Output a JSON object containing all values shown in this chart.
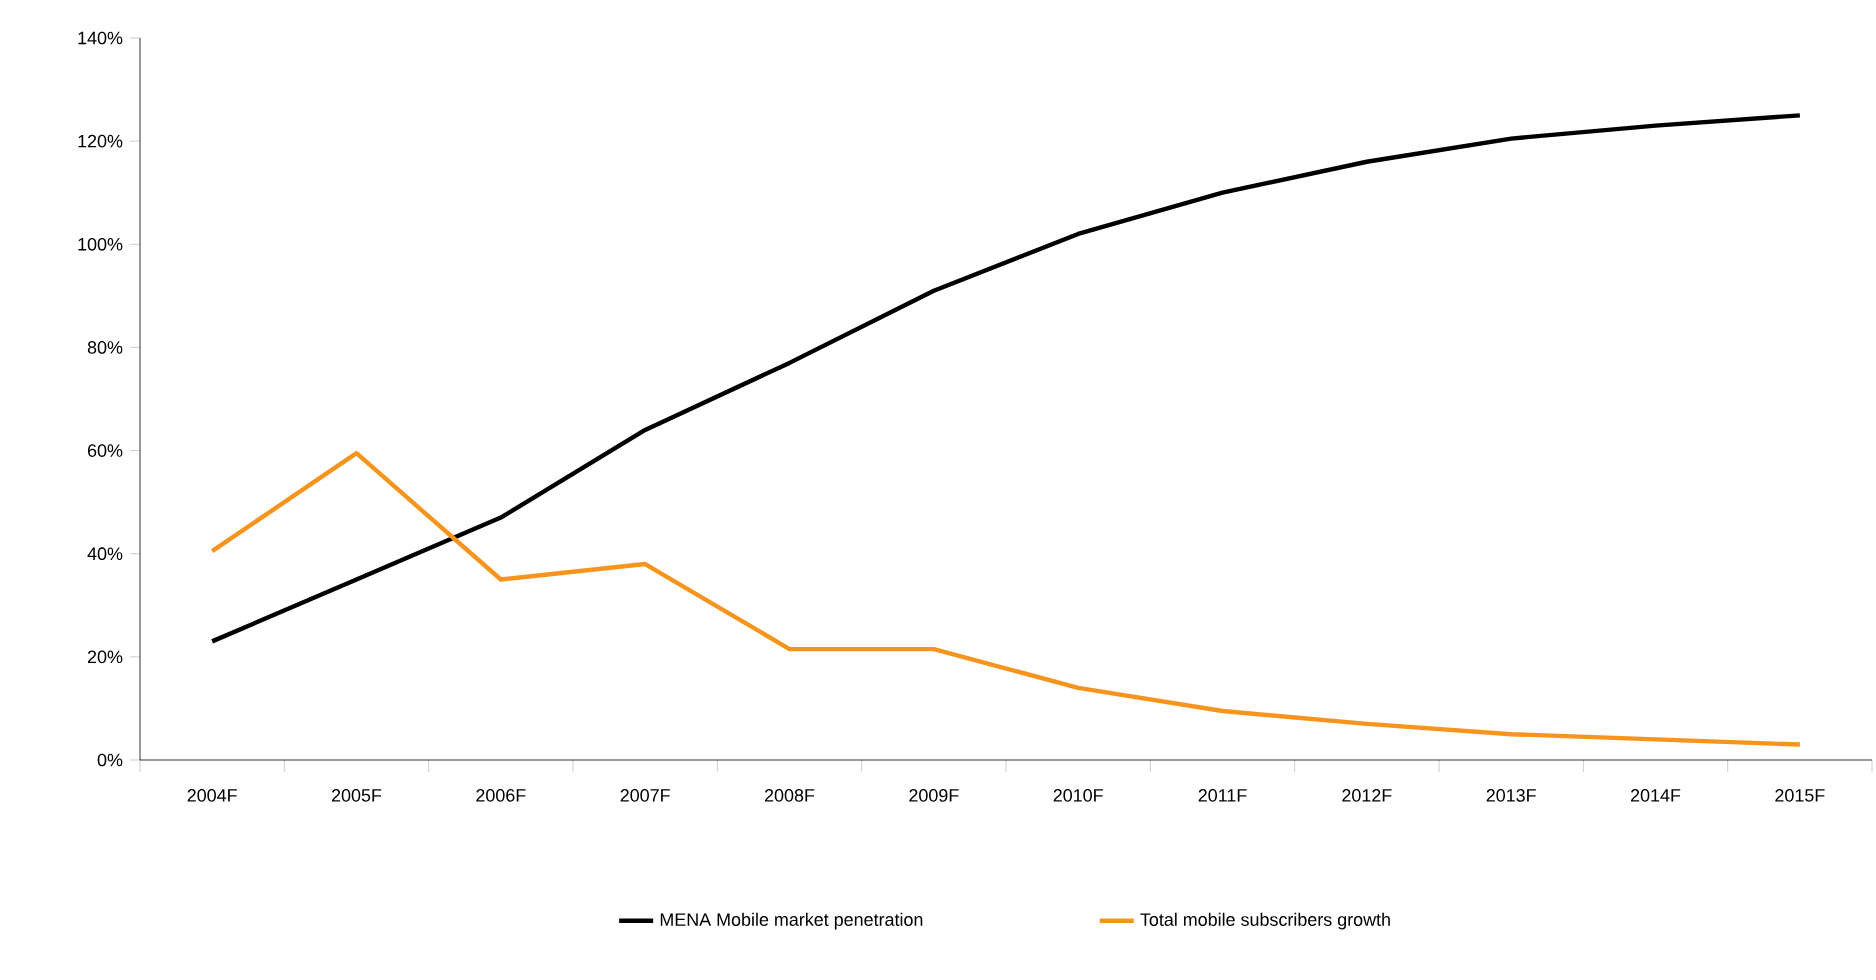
{
  "chart_data": {
    "type": "line",
    "categories": [
      "2004F",
      "2005F",
      "2006F",
      "2007F",
      "2008F",
      "2009F",
      "2010F",
      "2011F",
      "2012F",
      "2013F",
      "2014F",
      "2015F"
    ],
    "series": [
      {
        "name": "MENA Mobile market penetration",
        "color": "#000000",
        "values": [
          23,
          35,
          47,
          64,
          77,
          91,
          102,
          110,
          116,
          120.5,
          123,
          125
        ]
      },
      {
        "name": "Total mobile subscribers growth",
        "color": "#f7941d",
        "values": [
          40.5,
          59.5,
          35,
          38,
          21.5,
          21.5,
          14,
          9.5,
          7,
          5,
          4,
          3
        ]
      }
    ],
    "ylim": [
      0,
      140
    ],
    "yticks": [
      {
        "value": 0,
        "label": "0%"
      },
      {
        "value": 20,
        "label": "20%"
      },
      {
        "value": 40,
        "label": "40%"
      },
      {
        "value": 60,
        "label": "60%"
      },
      {
        "value": 80,
        "label": "80%"
      },
      {
        "value": 100,
        "label": "100%"
      },
      {
        "value": 120,
        "label": "120%"
      },
      {
        "value": 140,
        "label": "140%"
      }
    ],
    "grid": false,
    "legend": "bottom",
    "marker": "none",
    "line_style": "solid"
  }
}
